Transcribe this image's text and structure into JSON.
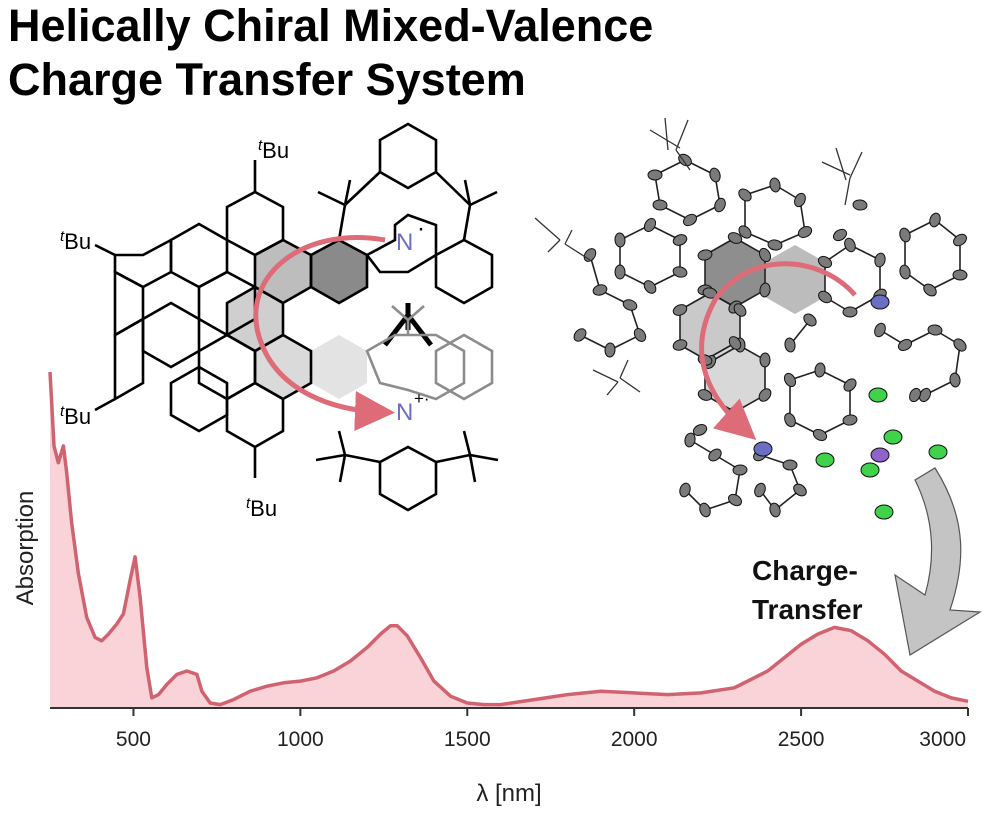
{
  "title": {
    "line1": "Helically Chiral Mixed-Valence",
    "line2": "Charge Transfer System"
  },
  "molecule_labels": {
    "tbu": "Bu",
    "tbu_prefix": "t",
    "n_neutral": "N",
    "n_neutral_mark": "·",
    "n_cation": "N",
    "n_cation_mark": "+·"
  },
  "annotation": {
    "line1": "Charge-",
    "line2": "Transfer"
  },
  "colors": {
    "spectrum_line": "#d0636f",
    "spectrum_fill": "#f9d3d8",
    "arrow": "#de6b78",
    "nitrogen": "#6a6fc4",
    "fluorine": "#3fd24a",
    "phosphorus": "#8f63c9",
    "carbon_ellipsoid": "#7a7a7a",
    "ct_arrow_fill": "#c4c4c4"
  },
  "chart_data": {
    "type": "area",
    "xlabel": "λ [nm]",
    "ylabel": "Absorption",
    "xlim": [
      250,
      3000
    ],
    "xticks": [
      500,
      1000,
      1500,
      2000,
      2500,
      3000
    ],
    "grid": false,
    "series": [
      {
        "x": [
          250,
          262,
          275,
          290,
          300,
          315,
          335,
          360,
          385,
          405,
          425,
          450,
          470,
          490,
          505,
          520,
          540,
          555,
          575,
          600,
          630,
          660,
          690,
          705,
          730,
          760,
          800,
          850,
          900,
          950,
          1000,
          1050,
          1100,
          1150,
          1200,
          1240,
          1270,
          1290,
          1320,
          1360,
          1400,
          1450,
          1500,
          1550,
          1600,
          1700,
          1800,
          1900,
          2000,
          2100,
          2200,
          2300,
          2320,
          2400,
          2450,
          2500,
          2550,
          2600,
          2650,
          2700,
          2750,
          2800,
          2850,
          2900,
          2950,
          3000
        ],
        "y": [
          1.0,
          0.78,
          0.73,
          0.78,
          0.7,
          0.55,
          0.4,
          0.27,
          0.21,
          0.2,
          0.22,
          0.25,
          0.28,
          0.38,
          0.45,
          0.33,
          0.12,
          0.03,
          0.04,
          0.07,
          0.1,
          0.11,
          0.1,
          0.05,
          0.015,
          0.01,
          0.025,
          0.05,
          0.065,
          0.075,
          0.08,
          0.09,
          0.11,
          0.14,
          0.18,
          0.22,
          0.245,
          0.245,
          0.215,
          0.15,
          0.08,
          0.035,
          0.015,
          0.01,
          0.01,
          0.025,
          0.04,
          0.05,
          0.045,
          0.04,
          0.045,
          0.06,
          0.07,
          0.11,
          0.15,
          0.19,
          0.22,
          0.24,
          0.23,
          0.2,
          0.16,
          0.11,
          0.08,
          0.05,
          0.03,
          0.02
        ]
      }
    ]
  }
}
